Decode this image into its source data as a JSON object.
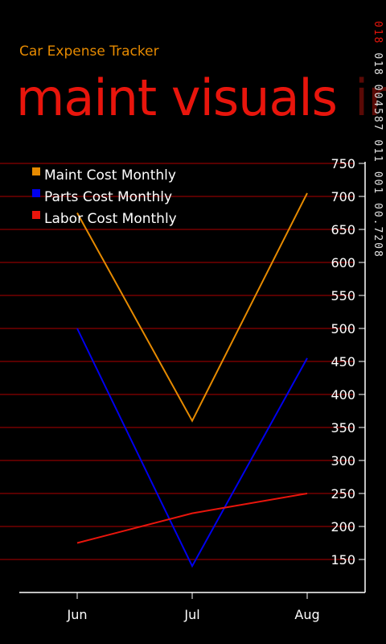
{
  "app": {
    "title": "Car Expense Tracker"
  },
  "pivot": {
    "current_header": "maint visuals",
    "next_header": "in"
  },
  "debug": {
    "line1": "018",
    "line2": "018 004587 011 001 00.7208"
  },
  "colors": {
    "accent": "#E68A00",
    "header": "#E8150C",
    "gridline": "#8B0000",
    "axis": "#ffffff"
  },
  "chart_data": {
    "type": "line",
    "categories": [
      "Jun",
      "Jul",
      "Aug"
    ],
    "series": [
      {
        "name": "Maint Cost Monthly",
        "color": "#E68A00",
        "values": [
          675,
          360,
          705
        ]
      },
      {
        "name": "Parts Cost Monthly",
        "color": "#0000EE",
        "values": [
          500,
          140,
          455
        ]
      },
      {
        "name": "Labor Cost Monthly",
        "color": "#E8150C",
        "values": [
          175,
          220,
          250
        ]
      }
    ],
    "y_ticks": [
      "150",
      "200",
      "250",
      "300",
      "350",
      "400",
      "450",
      "500",
      "550",
      "600",
      "650",
      "700",
      "750"
    ],
    "ylim": [
      100,
      750
    ],
    "y_axis_position": "right",
    "grid": true,
    "legend_position": "top-left"
  }
}
